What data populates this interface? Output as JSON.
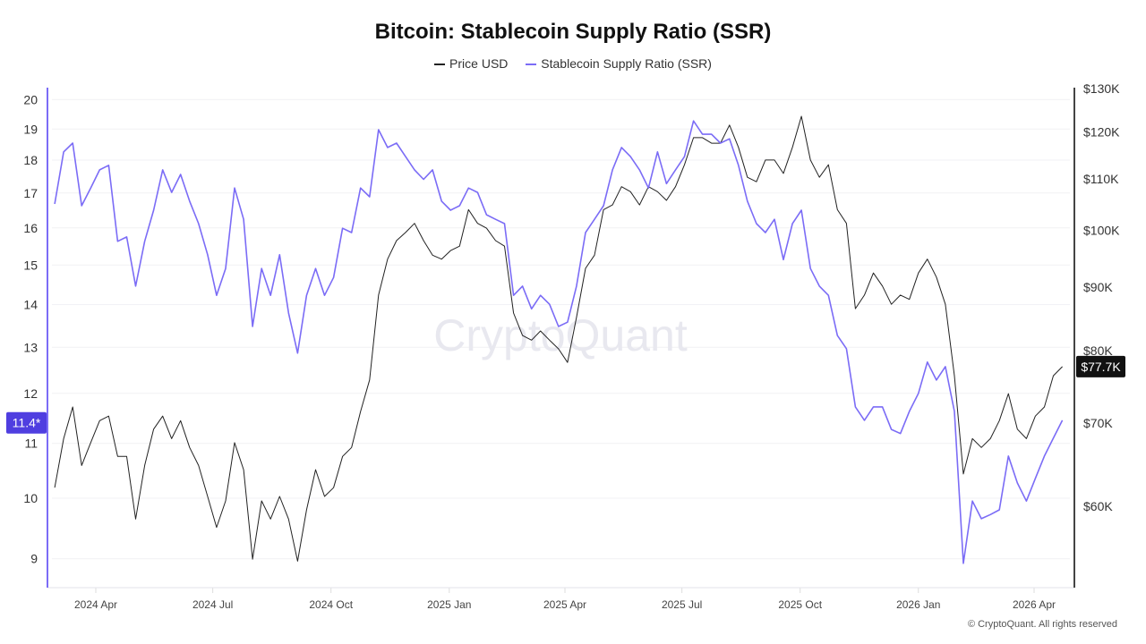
{
  "chart_data": {
    "type": "line",
    "title": "Bitcoin: Stablecoin Supply Ratio (SSR)",
    "legend_position": "top-center",
    "grid": true,
    "watermark": "CryptoQuant",
    "footer": "© CryptoQuant. All rights reserved",
    "x": [
      "2024-02-29",
      "2024-03-07",
      "2024-03-14",
      "2024-03-21",
      "2024-03-28",
      "2024-04-04",
      "2024-04-11",
      "2024-04-18",
      "2024-04-25",
      "2024-05-02",
      "2024-05-09",
      "2024-05-16",
      "2024-05-23",
      "2024-05-30",
      "2024-06-06",
      "2024-06-13",
      "2024-06-20",
      "2024-06-27",
      "2024-07-04",
      "2024-07-11",
      "2024-07-18",
      "2024-07-25",
      "2024-08-01",
      "2024-08-08",
      "2024-08-15",
      "2024-08-22",
      "2024-08-29",
      "2024-09-05",
      "2024-09-12",
      "2024-09-19",
      "2024-09-26",
      "2024-10-03",
      "2024-10-10",
      "2024-10-17",
      "2024-10-24",
      "2024-10-31",
      "2024-11-07",
      "2024-11-14",
      "2024-11-21",
      "2024-11-28",
      "2024-12-05",
      "2024-12-12",
      "2024-12-19",
      "2024-12-26",
      "2025-01-02",
      "2025-01-09",
      "2025-01-16",
      "2025-01-23",
      "2025-01-30",
      "2025-02-06",
      "2025-02-13",
      "2025-02-20",
      "2025-02-27",
      "2025-03-06",
      "2025-03-13",
      "2025-03-20",
      "2025-03-27",
      "2025-04-03",
      "2025-04-10",
      "2025-04-17",
      "2025-04-24",
      "2025-05-01",
      "2025-05-08",
      "2025-05-15",
      "2025-05-22",
      "2025-05-29",
      "2025-06-05",
      "2025-06-12",
      "2025-06-19",
      "2025-06-26",
      "2025-07-03",
      "2025-07-10",
      "2025-07-17",
      "2025-07-24",
      "2025-07-31",
      "2025-08-07",
      "2025-08-14",
      "2025-08-21",
      "2025-08-28",
      "2025-09-04",
      "2025-09-11",
      "2025-09-18",
      "2025-09-25",
      "2025-10-02",
      "2025-10-09",
      "2025-10-16",
      "2025-10-23",
      "2025-10-30",
      "2025-11-06",
      "2025-11-13",
      "2025-11-20",
      "2025-11-27",
      "2025-12-04",
      "2025-12-11",
      "2025-12-18",
      "2025-12-25",
      "2026-01-01",
      "2026-01-08",
      "2026-01-15",
      "2026-01-22",
      "2026-01-29",
      "2026-02-05",
      "2026-02-12",
      "2026-02-19",
      "2026-02-26",
      "2026-03-05",
      "2026-03-12",
      "2026-03-19",
      "2026-03-26",
      "2026-04-02",
      "2026-04-09",
      "2026-04-16",
      "2026-04-23"
    ],
    "x_ticks": [
      "2024 Apr",
      "2024 Jul",
      "2024 Oct",
      "2025 Jan",
      "2025 Apr",
      "2025 Jul",
      "2025 Oct",
      "2026 Jan",
      "2026 Apr"
    ],
    "series": [
      {
        "name": "Price USD",
        "axis": "right",
        "color": "#222222",
        "unit": "K USD",
        "values": [
          62.1,
          68.0,
          72.1,
          64.7,
          67.5,
          70.3,
          70.9,
          65.8,
          65.8,
          58.6,
          64.7,
          69.2,
          70.9,
          68.0,
          70.3,
          66.9,
          64.7,
          61.1,
          57.7,
          60.6,
          67.5,
          64.2,
          54.4,
          60.6,
          58.6,
          61.1,
          58.6,
          54.2,
          59.6,
          64.2,
          61.1,
          62.1,
          65.8,
          66.9,
          71.5,
          75.8,
          88.7,
          94.8,
          98.1,
          99.6,
          101.3,
          98.1,
          95.5,
          94.8,
          96.3,
          97.1,
          103.9,
          101.3,
          100.4,
          98.1,
          97.1,
          85.8,
          82.3,
          81.6,
          83.0,
          81.6,
          80.3,
          78.3,
          85.1,
          93.2,
          95.5,
          103.9,
          104.8,
          108.4,
          107.4,
          104.8,
          108.4,
          107.4,
          105.7,
          108.4,
          112.9,
          118.7,
          118.7,
          117.5,
          117.5,
          121.5,
          116.6,
          110.3,
          109.4,
          113.9,
          113.9,
          111.1,
          116.6,
          123.5,
          113.9,
          110.3,
          112.9,
          103.9,
          101.3,
          86.5,
          88.7,
          92.4,
          90.2,
          87.2,
          88.7,
          88.0,
          92.4,
          94.8,
          91.7,
          87.2,
          76.4,
          63.7,
          68.0,
          66.9,
          68.0,
          70.3,
          73.9,
          69.2,
          68.0,
          70.9,
          72.1,
          76.4,
          77.7
        ]
      },
      {
        "name": "Stablecoin Supply Ratio (SSR)",
        "axis": "left",
        "color": "#7b6cf6",
        "values": [
          16.68,
          18.26,
          18.54,
          16.63,
          17.15,
          17.7,
          17.84,
          15.63,
          15.75,
          14.46,
          15.63,
          16.5,
          17.7,
          17.02,
          17.56,
          16.76,
          16.12,
          15.27,
          14.23,
          14.91,
          17.15,
          16.24,
          13.48,
          14.91,
          14.23,
          15.27,
          13.8,
          12.87,
          14.23,
          14.91,
          14.23,
          14.68,
          15.99,
          15.87,
          17.15,
          16.89,
          18.98,
          18.4,
          18.54,
          18.11,
          17.7,
          17.41,
          17.7,
          16.76,
          16.5,
          16.63,
          17.15,
          17.02,
          16.37,
          16.24,
          16.12,
          14.23,
          14.46,
          13.9,
          14.23,
          14.01,
          13.48,
          13.58,
          14.46,
          15.87,
          16.24,
          16.63,
          17.7,
          18.4,
          18.11,
          17.7,
          17.15,
          18.26,
          17.28,
          17.7,
          18.11,
          19.27,
          18.83,
          18.83,
          18.54,
          18.68,
          17.84,
          16.76,
          16.12,
          15.87,
          16.24,
          15.14,
          16.12,
          16.5,
          14.91,
          14.46,
          14.23,
          13.27,
          12.97,
          11.72,
          11.45,
          11.72,
          11.72,
          11.27,
          11.19,
          11.63,
          12.0,
          12.67,
          12.28,
          12.57,
          11.63,
          8.93,
          9.95,
          9.65,
          9.72,
          9.8,
          10.76,
          10.27,
          9.95,
          10.35,
          10.76,
          11.1,
          11.45
        ]
      }
    ],
    "left_axis": {
      "scale": "log",
      "ticks": [
        "9",
        "10",
        "11",
        "12",
        "13",
        "14",
        "15",
        "16",
        "17",
        "18",
        "19",
        "20"
      ],
      "current_label": "11.4*",
      "current_value": 11.4,
      "color": "#4f3ee0"
    },
    "right_axis": {
      "scale": "log",
      "ticks": [
        "$60K",
        "$70K",
        "$80K",
        "$90K",
        "$100K",
        "$110K",
        "$120K",
        "$130K"
      ],
      "tick_values": [
        60,
        70,
        80,
        90,
        100,
        110,
        120,
        130
      ],
      "current_label": "$77.7K",
      "current_value": 77.7
    }
  }
}
